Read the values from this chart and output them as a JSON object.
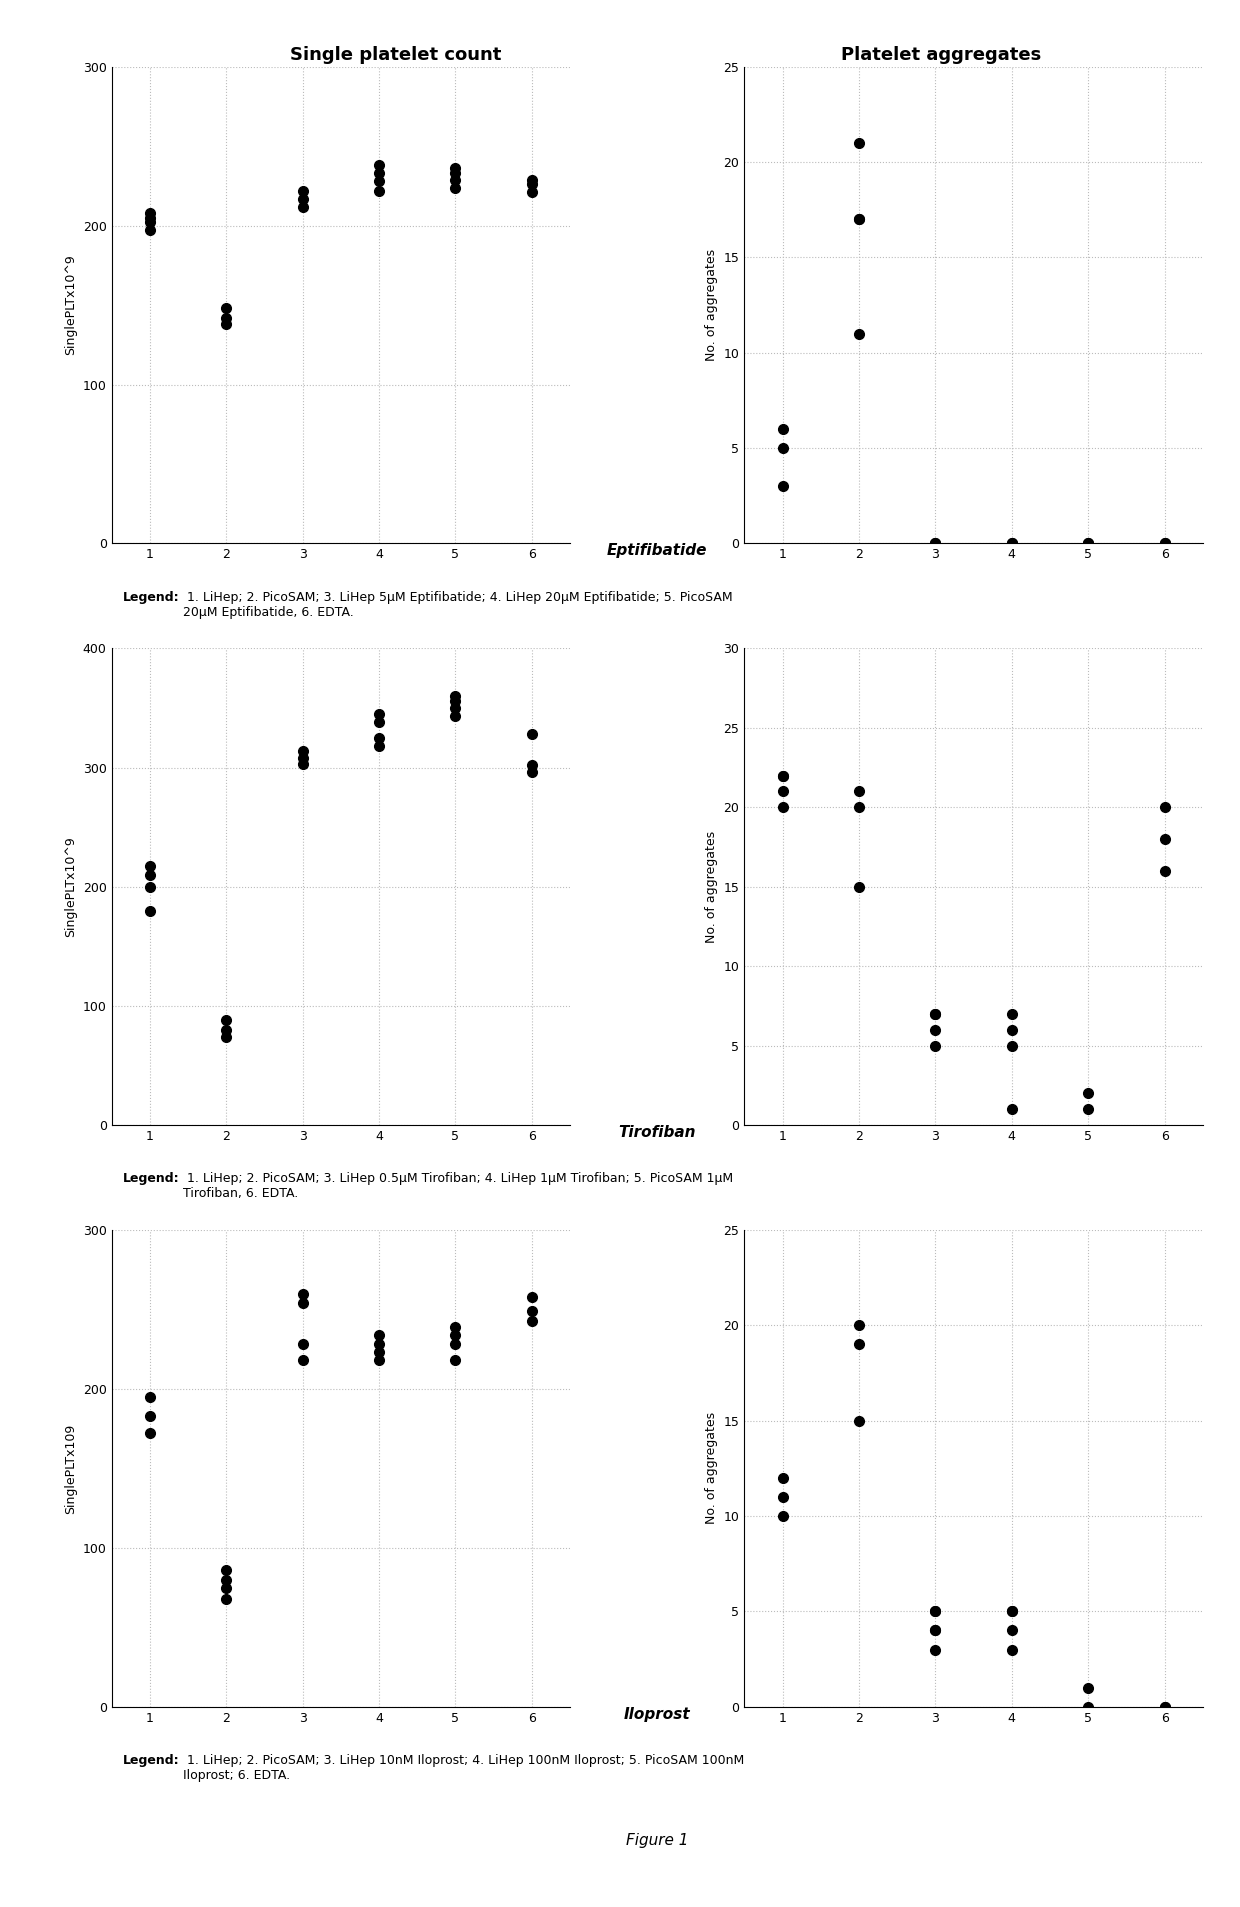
{
  "panels": [
    {
      "name": "Eptifibatide",
      "left": {
        "ylabel": "SinglePLTx10^9",
        "ylim": [
          0,
          300
        ],
        "yticks": [
          0,
          100,
          200,
          300
        ],
        "data": {
          "1": [
            197,
            202,
            205,
            208
          ],
          "2": [
            138,
            142,
            148
          ],
          "3": [
            212,
            217,
            222
          ],
          "4": [
            222,
            228,
            233,
            238
          ],
          "5": [
            224,
            229,
            233,
            236
          ],
          "6": [
            221,
            226,
            229
          ]
        }
      },
      "right": {
        "ylabel": "No. of aggregates",
        "ylim": [
          0,
          25
        ],
        "yticks": [
          0,
          5,
          10,
          15,
          20,
          25
        ],
        "data": {
          "1": [
            3,
            5,
            6
          ],
          "2": [
            11,
            17,
            17,
            21
          ],
          "3": [
            0,
            0
          ],
          "4": [
            0,
            0
          ],
          "5": [
            0,
            0
          ],
          "6": [
            0,
            0
          ]
        }
      },
      "legend_bold": "Legend:",
      "legend_normal": " 1. LiHep; 2. PicoSAM; 3. LiHep 5μM Eptifibatide; 4. LiHep 20μM Eptifibatide; 5. PicoSAM\n20μM Eptifibatide, 6. EDTA."
    },
    {
      "name": "Tirofiban",
      "left": {
        "ylabel": "SinglePLTx10^9",
        "ylim": [
          0,
          400
        ],
        "yticks": [
          0,
          100,
          200,
          300,
          400
        ],
        "data": {
          "1": [
            180,
            200,
            210,
            217
          ],
          "2": [
            74,
            80,
            88
          ],
          "3": [
            303,
            308,
            314
          ],
          "4": [
            318,
            325,
            338,
            345
          ],
          "5": [
            343,
            350,
            356,
            360
          ],
          "6": [
            296,
            302,
            328
          ]
        }
      },
      "right": {
        "ylabel": "No. of aggregates",
        "ylim": [
          0,
          30
        ],
        "yticks": [
          0,
          5,
          10,
          15,
          20,
          25,
          30
        ],
        "data": {
          "1": [
            20,
            21,
            22,
            22
          ],
          "2": [
            15,
            20,
            21
          ],
          "3": [
            5,
            6,
            7,
            7
          ],
          "4": [
            5,
            6,
            7,
            1
          ],
          "5": [
            1,
            2
          ],
          "6": [
            16,
            18,
            20
          ]
        }
      },
      "legend_bold": "Legend:",
      "legend_normal": " 1. LiHep; 2. PicoSAM; 3. LiHep 0.5μM Tirofiban; 4. LiHep 1μM Tirofiban; 5. PicoSAM 1μM\nTirofiban, 6. EDTA."
    },
    {
      "name": "Iloprost",
      "left": {
        "ylabel": "SinglePLTx109",
        "ylim": [
          0,
          300
        ],
        "yticks": [
          0,
          100,
          200,
          300
        ],
        "data": {
          "1": [
            172,
            183,
            195
          ],
          "2": [
            68,
            75,
            80,
            86
          ],
          "3": [
            218,
            228,
            254,
            260
          ],
          "4": [
            218,
            223,
            228,
            234
          ],
          "5": [
            218,
            228,
            234,
            239
          ],
          "6": [
            243,
            249,
            258
          ]
        }
      },
      "right": {
        "ylabel": "No. of aggregates",
        "ylim": [
          0,
          25
        ],
        "yticks": [
          0,
          5,
          10,
          15,
          20,
          25
        ],
        "data": {
          "1": [
            10,
            11,
            12
          ],
          "2": [
            15,
            19,
            20
          ],
          "3": [
            3,
            4,
            4,
            5,
            5
          ],
          "4": [
            3,
            4,
            5,
            5
          ],
          "5": [
            0,
            1
          ],
          "6": [
            0,
            0
          ]
        }
      },
      "legend_bold": "Legend:",
      "legend_normal": " 1. LiHep; 2. PicoSAM; 3. LiHep 10nM Iloprost; 4. LiHep 100nM Iloprost; 5. PicoSAM 100nM\nIloprost; 6. EDTA."
    }
  ],
  "col_titles": [
    "Single platelet count",
    "Platelet aggregates"
  ],
  "figure_caption": "Figure 1",
  "dot_color": "#000000",
  "dot_size": 7,
  "grid_color": "#bbbbbb",
  "grid_style": ":"
}
